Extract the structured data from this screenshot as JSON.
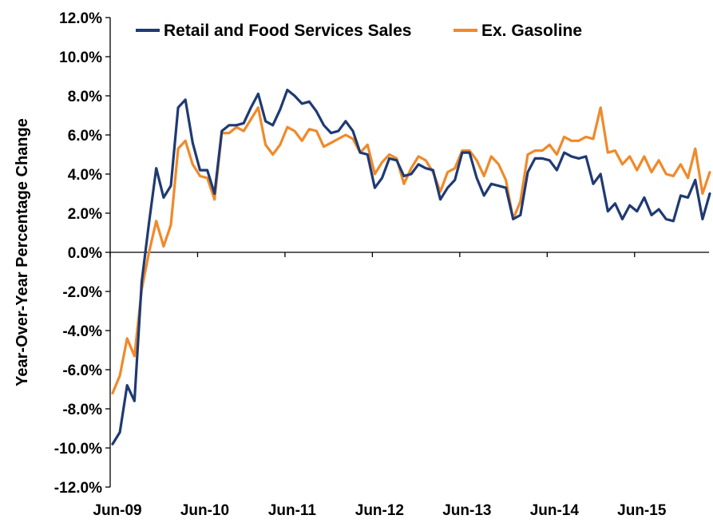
{
  "chart_data": {
    "type": "line",
    "title": "",
    "xlabel": "",
    "ylabel": "Year-Over-Year  Percentage Change",
    "ylim": [
      -12,
      12
    ],
    "y_tick_step": 2,
    "y_tick_format": "percent-1dp",
    "grid": false,
    "legend_position": "top",
    "x_start": "Jun-09",
    "x_tick_labels": [
      "Jun-09",
      "Jun-10",
      "Jun-11",
      "Jun-12",
      "Jun-13",
      "Jun-14",
      "Jun-15"
    ],
    "series": [
      {
        "name": "Retail and Food Services Sales",
        "color": "#1F3A73",
        "values": [
          -9.8,
          -9.2,
          -6.8,
          -7.6,
          -1.5,
          1.5,
          4.3,
          2.8,
          3.4,
          7.4,
          7.8,
          5.6,
          4.2,
          4.2,
          3.0,
          6.2,
          6.5,
          6.5,
          6.6,
          7.4,
          8.1,
          6.7,
          6.5,
          7.3,
          8.3,
          8.0,
          7.6,
          7.7,
          7.2,
          6.5,
          6.1,
          6.2,
          6.7,
          6.2,
          5.1,
          5.0,
          3.3,
          3.8,
          4.8,
          4.7,
          3.9,
          4.0,
          4.5,
          4.3,
          4.2,
          2.7,
          3.3,
          3.7,
          5.1,
          5.1,
          3.8,
          2.9,
          3.5,
          3.4,
          3.3,
          1.7,
          1.9,
          4.1,
          4.8,
          4.8,
          4.7,
          4.2,
          5.1,
          4.9,
          4.8,
          4.9,
          3.5,
          4.0,
          2.1,
          2.5,
          1.7,
          2.4,
          2.1,
          2.8,
          1.9,
          2.2,
          1.7,
          1.6,
          2.9,
          2.8,
          3.7,
          1.7,
          3.0
        ]
      },
      {
        "name": "Ex. Gasoline",
        "color": "#F0892A",
        "values": [
          -7.2,
          -6.3,
          -4.4,
          -5.3,
          -1.9,
          0.0,
          1.6,
          0.3,
          1.4,
          5.3,
          5.7,
          4.5,
          3.9,
          3.8,
          2.7,
          6.1,
          6.1,
          6.4,
          6.2,
          6.8,
          7.4,
          5.5,
          5.0,
          5.5,
          6.4,
          6.2,
          5.7,
          6.3,
          6.2,
          5.4,
          5.6,
          5.8,
          6.0,
          5.8,
          5.1,
          5.5,
          4.0,
          4.6,
          5.0,
          4.8,
          3.5,
          4.3,
          4.9,
          4.7,
          4.1,
          3.1,
          4.1,
          4.3,
          5.2,
          5.2,
          4.7,
          3.9,
          4.9,
          4.5,
          3.7,
          1.7,
          2.6,
          5.0,
          5.2,
          5.2,
          5.5,
          5.0,
          5.9,
          5.7,
          5.7,
          5.9,
          5.8,
          7.4,
          5.1,
          5.2,
          4.5,
          4.9,
          4.2,
          4.9,
          4.1,
          4.7,
          4.0,
          3.9,
          4.5,
          3.8,
          5.3,
          3.0,
          4.1
        ]
      }
    ]
  }
}
